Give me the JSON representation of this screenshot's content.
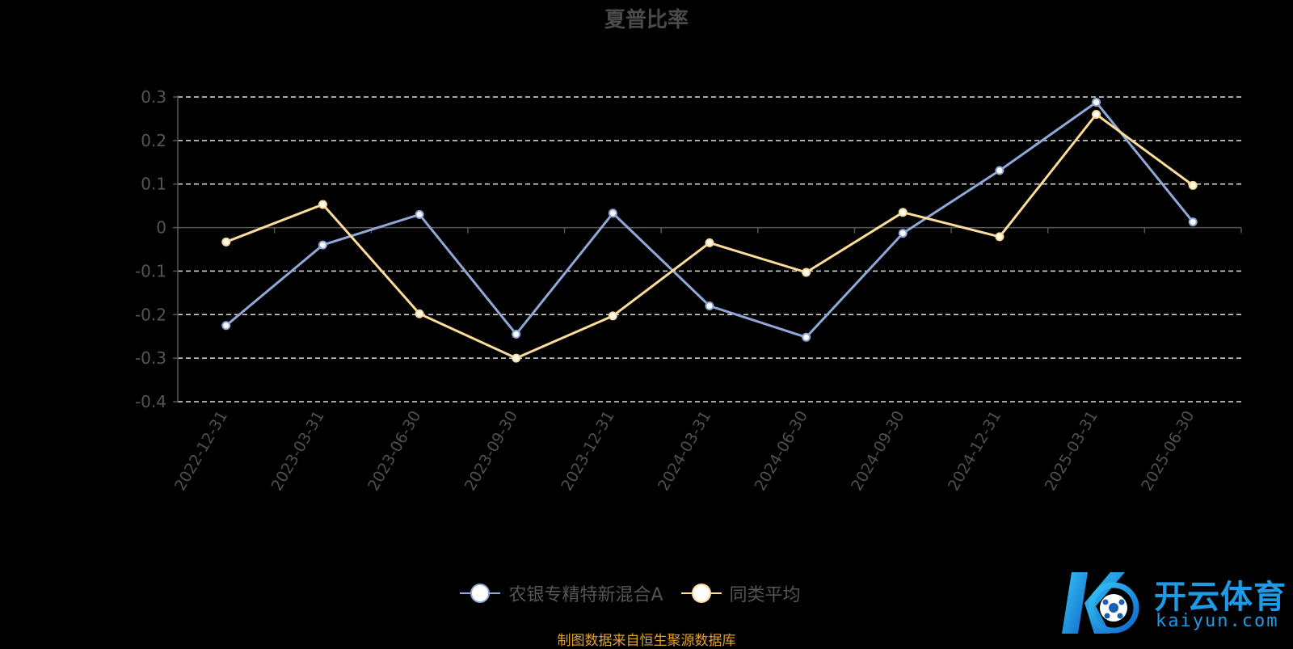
{
  "chart_data": {
    "type": "line",
    "title": "夏普比率",
    "xlabel": "",
    "ylabel": "",
    "x": [
      "2022-12-31",
      "2023-03-31",
      "2023-06-30",
      "2023-09-30",
      "2023-12-31",
      "2024-03-31",
      "2024-06-30",
      "2024-09-30",
      "2024-12-31",
      "2025-03-31",
      "2025-06-30"
    ],
    "ylim": [
      -0.4,
      0.3
    ],
    "yticks": [
      "0.3",
      "0.2",
      "0.1",
      "0",
      "-0.1",
      "-0.2",
      "-0.3",
      "-0.4"
    ],
    "grid": true,
    "legend_position": "bottom",
    "series": [
      {
        "name": "农银专精特新混合A",
        "color": "#8fa8d8",
        "values": [
          -0.225,
          -0.04,
          0.03,
          -0.245,
          0.033,
          -0.18,
          -0.252,
          -0.013,
          0.131,
          0.288,
          0.013
        ]
      },
      {
        "name": "同类平均",
        "color": "#fddc9a",
        "values": [
          -0.033,
          0.053,
          -0.198,
          -0.3,
          -0.203,
          -0.035,
          -0.103,
          0.035,
          -0.021,
          0.26,
          0.097
        ]
      }
    ]
  },
  "footer": {
    "source": "制图数据来自恒生聚源数据库"
  },
  "watermark": {
    "brand": "开云体育",
    "domain": "kaiyun.com"
  }
}
